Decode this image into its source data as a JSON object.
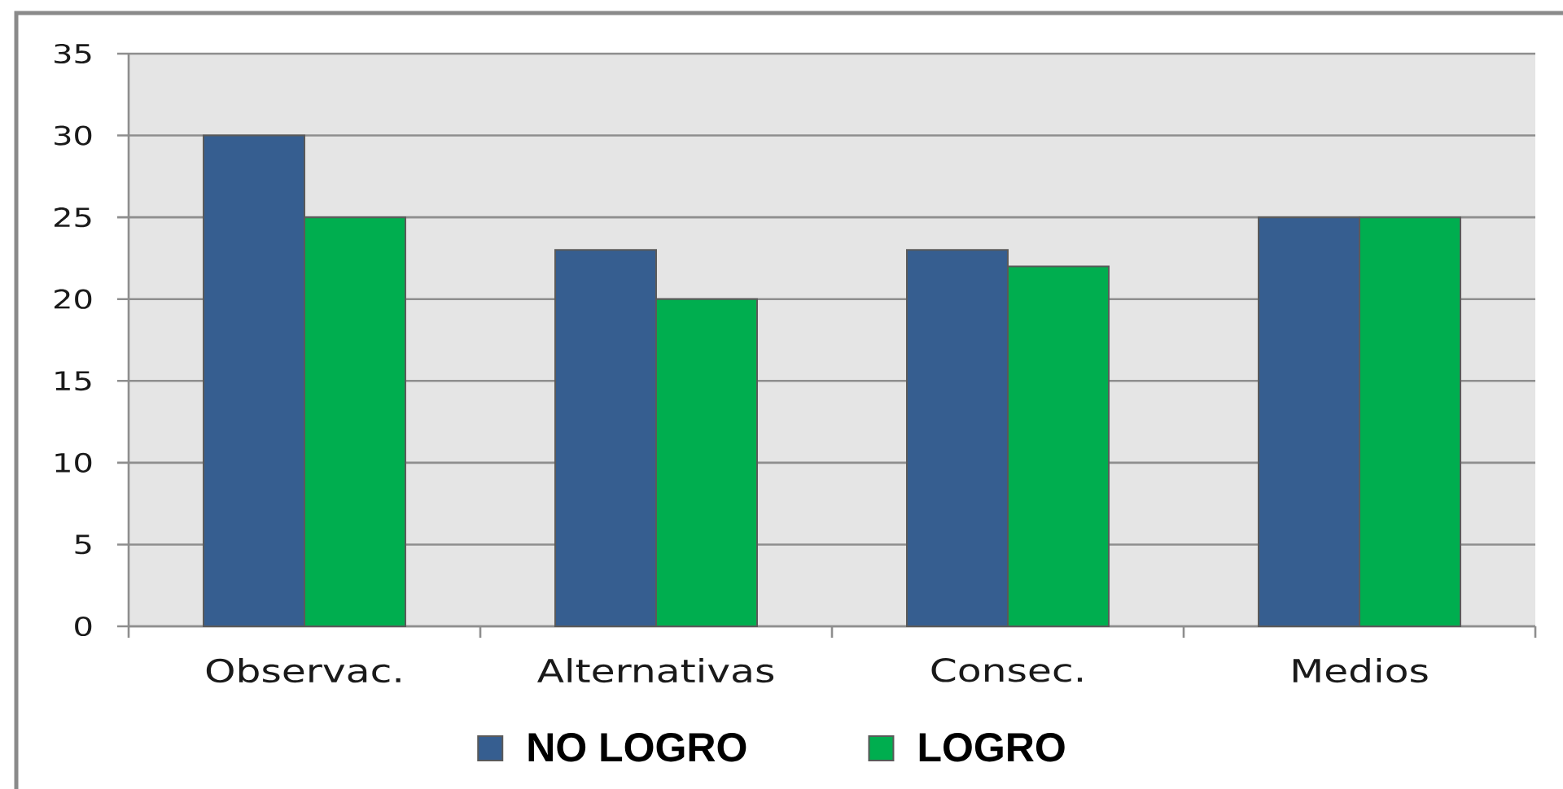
{
  "chart_data": {
    "type": "bar",
    "categories": [
      "Observac.",
      "Alternativas",
      "Consec.",
      "Medios"
    ],
    "series": [
      {
        "name": "NO LOGRO",
        "color": "#365e90",
        "values": [
          30,
          23,
          23,
          25
        ]
      },
      {
        "name": "LOGRO",
        "color": "#00ae4f",
        "values": [
          25,
          20,
          22,
          25
        ]
      }
    ],
    "ylim": [
      0,
      35
    ],
    "yticks": [
      0,
      5,
      10,
      15,
      20,
      25,
      30,
      35
    ],
    "grid": "y",
    "legend": "bottom"
  }
}
